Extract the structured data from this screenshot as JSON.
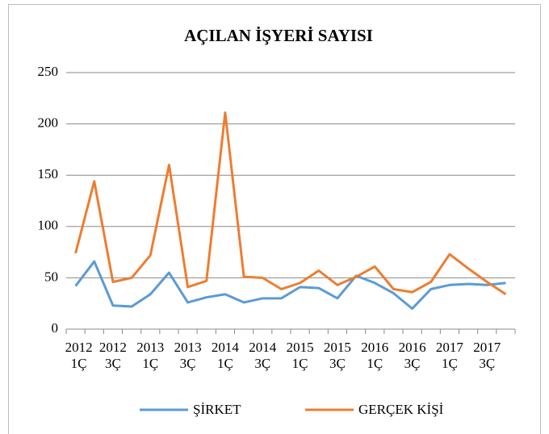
{
  "chart_data": {
    "type": "line",
    "title": "AÇILAN İŞYERİ SAYISI",
    "categories": [
      [
        "2012",
        "1Ç"
      ],
      null,
      [
        "2012",
        "3Ç"
      ],
      null,
      [
        "2013",
        "1Ç"
      ],
      null,
      [
        "2013",
        "3Ç"
      ],
      null,
      [
        "2014",
        "1Ç"
      ],
      null,
      [
        "2014",
        "3Ç"
      ],
      null,
      [
        "2015",
        "1Ç"
      ],
      null,
      [
        "2015",
        "3Ç"
      ],
      null,
      [
        "2016",
        "1Ç"
      ],
      null,
      [
        "2016",
        "3Ç"
      ],
      null,
      [
        "2017",
        "1Ç"
      ],
      null,
      [
        "2017",
        "3Ç"
      ],
      null
    ],
    "series": [
      {
        "name": "ŞİRKET",
        "color": "#5b9bd5",
        "values": [
          42,
          66,
          23,
          22,
          34,
          55,
          26,
          31,
          34,
          26,
          30,
          30,
          41,
          40,
          30,
          52,
          45,
          35,
          20,
          39,
          43,
          44,
          43,
          45
        ]
      },
      {
        "name": "GERÇEK KİŞİ",
        "color": "#ed7d31",
        "values": [
          74,
          144,
          46,
          50,
          72,
          160,
          41,
          47,
          211,
          51,
          50,
          39,
          45,
          57,
          43,
          51,
          61,
          39,
          36,
          46,
          73,
          59,
          46,
          34
        ]
      }
    ],
    "ylim": [
      0,
      250
    ],
    "yticks": [
      0,
      50,
      100,
      150,
      200,
      250
    ],
    "grid": true,
    "legend": "bottom"
  }
}
